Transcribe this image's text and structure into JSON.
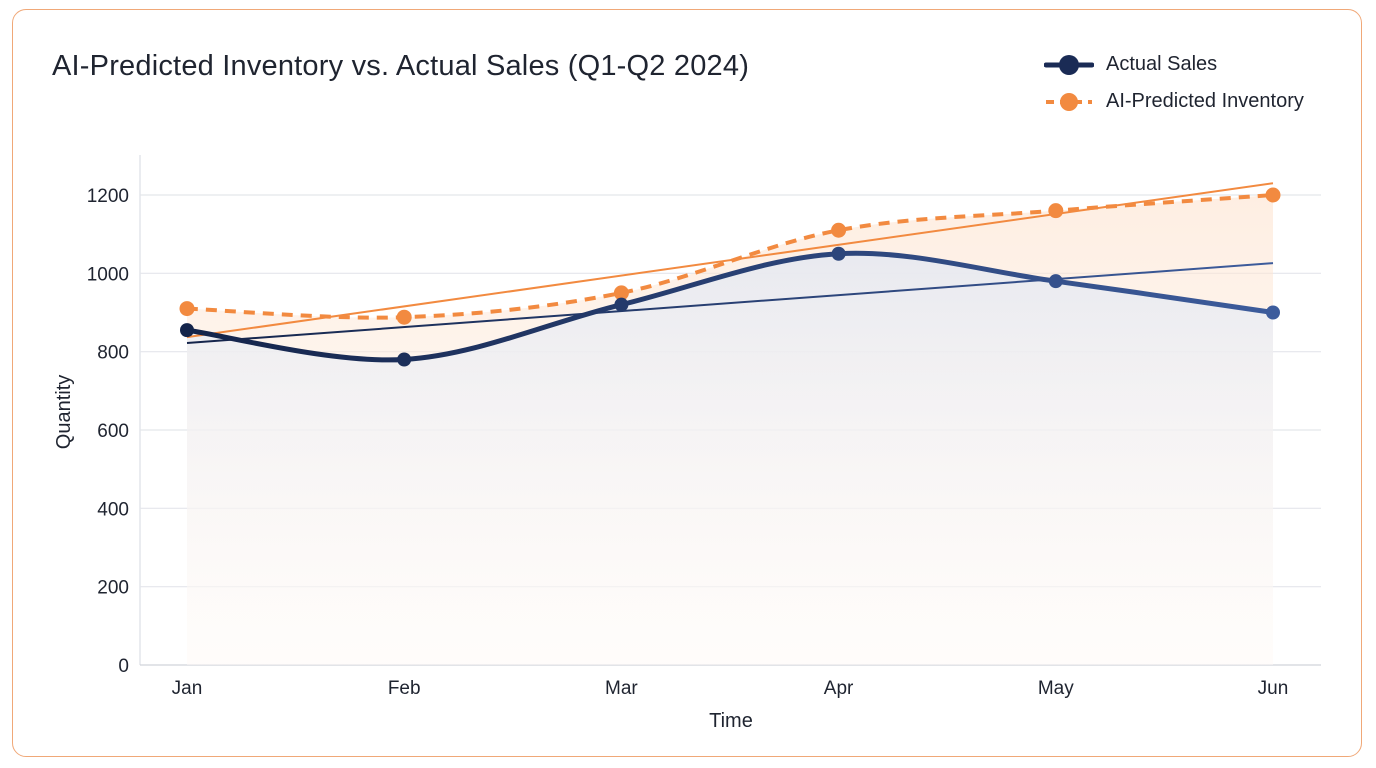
{
  "chart_data": {
    "type": "line",
    "title": "AI-Predicted Inventory vs. Actual Sales (Q1-Q2 2024)",
    "xlabel": "Time",
    "ylabel": "Quantity",
    "categories": [
      "Jan",
      "Feb",
      "Mar",
      "Apr",
      "May",
      "Jun"
    ],
    "ylim": [
      0,
      1300
    ],
    "yticks": [
      0,
      200,
      400,
      600,
      800,
      1000,
      1200
    ],
    "grid": true,
    "legend_position": "top-right",
    "series": [
      {
        "name": "Actual Sales",
        "values": [
          855,
          780,
          920,
          1050,
          980,
          900
        ],
        "color": "#1a2b55",
        "color_end": "#3a5a98",
        "style": "solid-smooth",
        "trendline": [
          822,
          1026
        ]
      },
      {
        "name": "AI-Predicted Inventory",
        "values": [
          910,
          888,
          950,
          1110,
          1160,
          1200
        ],
        "color": "#f28a40",
        "style": "dashed",
        "trendline": [
          837,
          1230
        ]
      }
    ]
  }
}
